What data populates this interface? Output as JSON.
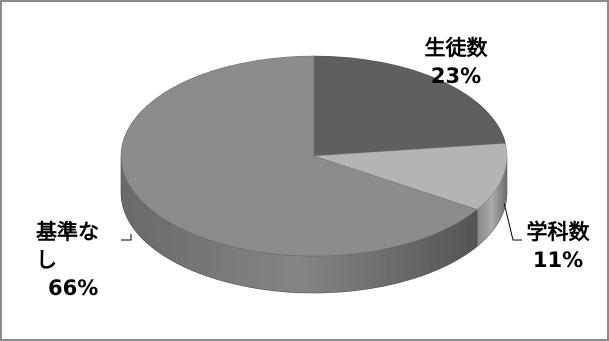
{
  "chart_data": {
    "type": "pie",
    "three_d": true,
    "slices": [
      {
        "name": "生徒数",
        "name_line1": "生徒数",
        "name_line2": "",
        "value": 23,
        "label": "23%",
        "color": "#5f5f5f"
      },
      {
        "name": "学科数",
        "name_line1": "学科数",
        "name_line2": "",
        "value": 11,
        "label": "11%",
        "color": "#b4b4b4"
      },
      {
        "name": "基準なし",
        "name_line1": "基準な",
        "name_line2": "し",
        "value": 66,
        "label": "66%",
        "color": "#8c8c8c"
      }
    ],
    "title": "",
    "legend": "none",
    "data_labels": "category-and-percent",
    "background": "#ffffff",
    "border_color": "#8c8c8c"
  }
}
